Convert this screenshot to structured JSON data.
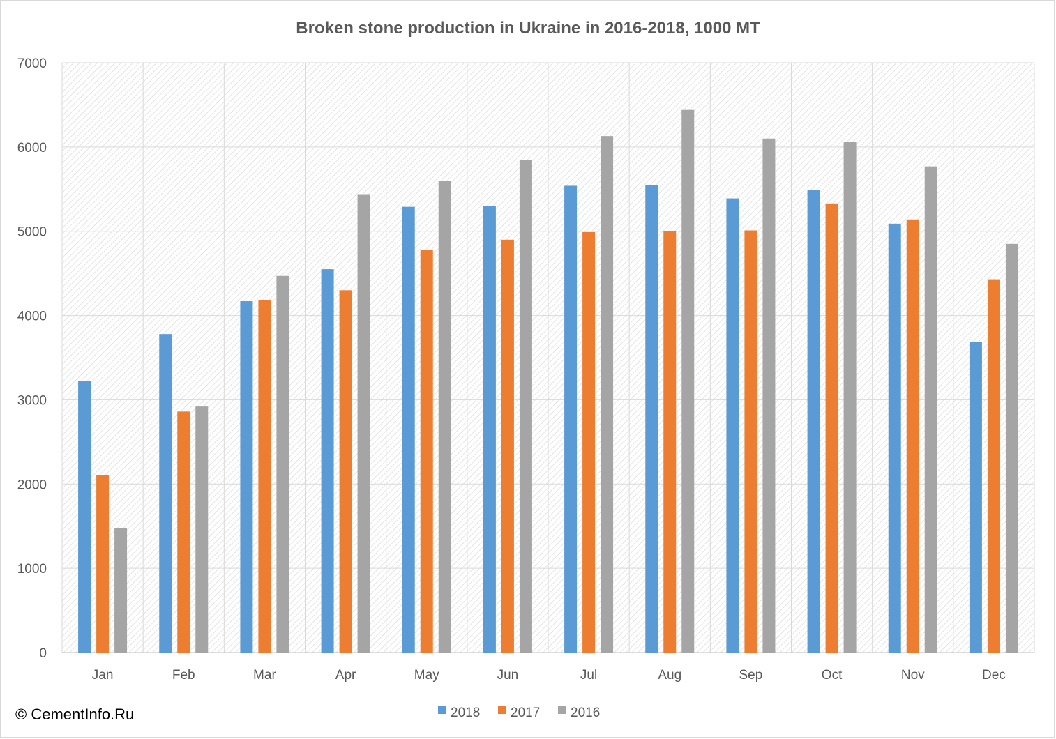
{
  "copyright": "© CementInfo.Ru",
  "colors": {
    "2018": "#5b9bd5",
    "2017": "#ed7d31",
    "2016": "#a5a5a5"
  },
  "chart_data": {
    "type": "bar",
    "title": "Broken stone production in Ukraine in 2016-2018, 1000 MT",
    "xlabel": "",
    "ylabel": "",
    "ylim": [
      0,
      7000
    ],
    "yticks": [
      0,
      1000,
      2000,
      3000,
      4000,
      5000,
      6000,
      7000
    ],
    "grid": true,
    "legend_position": "bottom",
    "categories": [
      "Jan",
      "Feb",
      "Mar",
      "Apr",
      "May",
      "Jun",
      "Jul",
      "Aug",
      "Sep",
      "Oct",
      "Nov",
      "Dec"
    ],
    "series": [
      {
        "name": "2018",
        "values": [
          3220,
          3780,
          4170,
          4550,
          5290,
          5300,
          5540,
          5550,
          5390,
          5490,
          5090,
          3690
        ]
      },
      {
        "name": "2017",
        "values": [
          2110,
          2860,
          4180,
          4300,
          4780,
          4900,
          4990,
          5000,
          5010,
          5330,
          5140,
          4430
        ]
      },
      {
        "name": "2016",
        "values": [
          1480,
          2920,
          4470,
          5440,
          5600,
          5850,
          6130,
          6440,
          6100,
          6060,
          5770,
          4850
        ]
      }
    ]
  }
}
